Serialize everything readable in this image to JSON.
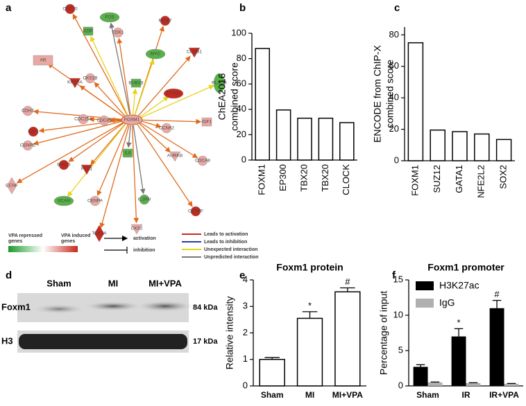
{
  "panel_labels": [
    "a",
    "b",
    "c",
    "d",
    "e",
    "f"
  ],
  "network": {
    "hub": "FOXM1",
    "nodes": [
      "CDC20",
      "FOS",
      "MKI67",
      "KDR",
      "CDK1",
      "MYC",
      "CCNB1",
      "AR",
      "KIF20A",
      "CKS1B",
      "BUB1B",
      "PLAUR",
      "PTTG1",
      "CDH2",
      "E2F1",
      "CDC25A",
      "CDC45",
      "IGF1",
      "CENPE",
      "CCNA2",
      "BIRC5",
      "PLK1",
      "IL6",
      "AURKB",
      "CDCA8",
      "CCNF",
      "VCAN",
      "IL1RN",
      "CENPA",
      "CENPF",
      "TOP2A",
      "CKS2"
    ],
    "legend": {
      "repressed": [
        "VPA repressed",
        "genes"
      ],
      "induced": [
        "VPA induced",
        "genes"
      ],
      "activation": "activation",
      "inhibition": "inhibition",
      "leads_to_activation": "Leads to activation",
      "leads_to_inhibition": "Leads to inhibition",
      "unexpected": "Unexpected interaction",
      "unpredicted": "Unpredicted interaction"
    }
  },
  "blot": {
    "lanes": [
      "Sham",
      "MI",
      "MI+VPA"
    ],
    "rows": [
      {
        "label": "Foxm1",
        "size": "84 kDa"
      },
      {
        "label": "H3",
        "size": "17 kDa"
      }
    ]
  },
  "chart_data": [
    {
      "type": "bar",
      "ylabel": [
        "ChEA2016",
        "combined score"
      ],
      "categories": [
        "FOXM1",
        "EP300",
        "TBX20",
        "TBX20",
        "CLOCK"
      ],
      "values": [
        88,
        39.5,
        33,
        33,
        29.5
      ],
      "color": "#ffffff",
      "ylim": [
        0,
        100
      ],
      "yticks": [
        0,
        20,
        40,
        60,
        80,
        100
      ]
    },
    {
      "type": "bar",
      "ylabel": [
        "ENCODE  from ChIP-X",
        "combined score"
      ],
      "categories": [
        "FOXM1",
        "SUZ12",
        "GATA1",
        "NFE2L2",
        "SOX2"
      ],
      "values": [
        75,
        19.5,
        18.5,
        17,
        13.5
      ],
      "color": "#ffffff",
      "ylim": [
        0,
        85
      ],
      "yticks": [
        0,
        20,
        40,
        60,
        80
      ]
    },
    {
      "type": "bar",
      "title": "Foxm1 protein",
      "ylabel": "Relative intensity",
      "categories": [
        "Sham",
        "MI",
        "MI+VPA"
      ],
      "values": [
        1.0,
        2.55,
        3.55
      ],
      "errors": [
        0.07,
        0.25,
        0.15
      ],
      "annotations": [
        null,
        "*",
        "#"
      ],
      "color": "#ffffff",
      "ylim": [
        0,
        4
      ],
      "yticks": [
        0,
        1,
        2,
        3,
        4
      ]
    },
    {
      "type": "grouped-bar",
      "title": "Foxm1 promoter",
      "ylabel": "Percentage of input",
      "categories": [
        "Sham",
        "IR",
        "IR+VPA"
      ],
      "series": [
        {
          "name": "H3K27ac",
          "color": "#000000",
          "values": [
            2.7,
            7.0,
            11.0
          ],
          "errors": [
            0.3,
            1.1,
            1.1
          ]
        },
        {
          "name": "IgG",
          "color": "#b0b0b0",
          "values": [
            0.5,
            0.4,
            0.3
          ],
          "errors": [
            0.05,
            0.05,
            0.05
          ]
        }
      ],
      "annotations": [
        null,
        "*",
        "#"
      ],
      "ylim": [
        0,
        15
      ],
      "yticks": [
        0,
        5,
        10,
        15
      ],
      "legend": "top-left"
    }
  ]
}
